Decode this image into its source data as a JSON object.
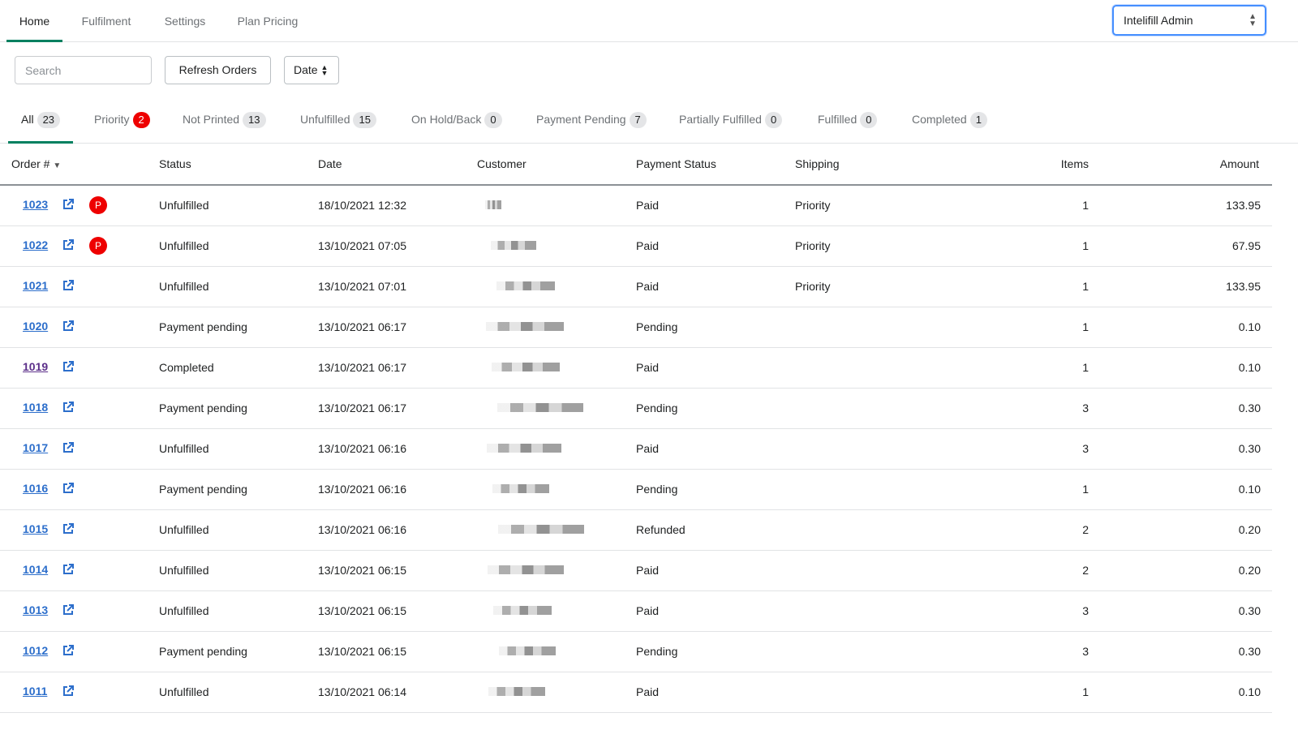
{
  "nav": {
    "tabs": [
      "Home",
      "Fulfilment",
      "Settings",
      "Plan Pricing"
    ],
    "active": 0,
    "account_select": "Intelifill Admin"
  },
  "toolbar": {
    "search_placeholder": "Search",
    "refresh_label": "Refresh Orders",
    "sort_label": "Date"
  },
  "filters": [
    {
      "label": "All",
      "count": "23"
    },
    {
      "label": "Priority",
      "count": "2"
    },
    {
      "label": "Not Printed",
      "count": "13"
    },
    {
      "label": "Unfulfilled",
      "count": "15"
    },
    {
      "label": "On Hold/Back",
      "count": "0"
    },
    {
      "label": "Payment Pending",
      "count": "7"
    },
    {
      "label": "Partially Fulfilled",
      "count": "0"
    },
    {
      "label": "Fulfilled",
      "count": "0"
    },
    {
      "label": "Completed",
      "count": "1"
    }
  ],
  "table": {
    "headers": [
      "Order #",
      "Status",
      "Date",
      "Customer",
      "Payment Status",
      "Shipping",
      "Items",
      "Amount"
    ],
    "priority_badge": "P",
    "rows": [
      {
        "order": "1023",
        "priority": true,
        "status": "Unfulfilled",
        "date": "18/10/2021 12:32",
        "payment": "Paid",
        "shipping": "Priority",
        "items": "1",
        "amount": "133.95"
      },
      {
        "order": "1022",
        "priority": true,
        "status": "Unfulfilled",
        "date": "13/10/2021 07:05",
        "payment": "Paid",
        "shipping": "Priority",
        "items": "1",
        "amount": "67.95"
      },
      {
        "order": "1021",
        "status": "Unfulfilled",
        "date": "13/10/2021 07:01",
        "payment": "Paid",
        "shipping": "Priority",
        "items": "1",
        "amount": "133.95"
      },
      {
        "order": "1020",
        "status": "Payment pending",
        "date": "13/10/2021 06:17",
        "payment": "Pending",
        "shipping": "",
        "items": "1",
        "amount": "0.10"
      },
      {
        "order": "1019",
        "visited": true,
        "status": "Completed",
        "date": "13/10/2021 06:17",
        "payment": "Paid",
        "shipping": "",
        "items": "1",
        "amount": "0.10"
      },
      {
        "order": "1018",
        "status": "Payment pending",
        "date": "13/10/2021 06:17",
        "payment": "Pending",
        "shipping": "",
        "items": "3",
        "amount": "0.30"
      },
      {
        "order": "1017",
        "status": "Unfulfilled",
        "date": "13/10/2021 06:16",
        "payment": "Paid",
        "shipping": "",
        "items": "3",
        "amount": "0.30"
      },
      {
        "order": "1016",
        "status": "Payment pending",
        "date": "13/10/2021 06:16",
        "payment": "Pending",
        "shipping": "",
        "items": "1",
        "amount": "0.10"
      },
      {
        "order": "1015",
        "status": "Unfulfilled",
        "date": "13/10/2021 06:16",
        "payment": "Refunded",
        "shipping": "",
        "items": "2",
        "amount": "0.20"
      },
      {
        "order": "1014",
        "status": "Unfulfilled",
        "date": "13/10/2021 06:15",
        "payment": "Paid",
        "shipping": "",
        "items": "2",
        "amount": "0.20"
      },
      {
        "order": "1013",
        "status": "Unfulfilled",
        "date": "13/10/2021 06:15",
        "payment": "Paid",
        "shipping": "",
        "items": "3",
        "amount": "0.30"
      },
      {
        "order": "1012",
        "status": "Payment pending",
        "date": "13/10/2021 06:15",
        "payment": "Pending",
        "shipping": "",
        "items": "3",
        "amount": "0.30"
      },
      {
        "order": "1011",
        "status": "Unfulfilled",
        "date": "13/10/2021 06:14",
        "payment": "Paid",
        "shipping": "",
        "items": "1",
        "amount": "0.10"
      }
    ]
  }
}
